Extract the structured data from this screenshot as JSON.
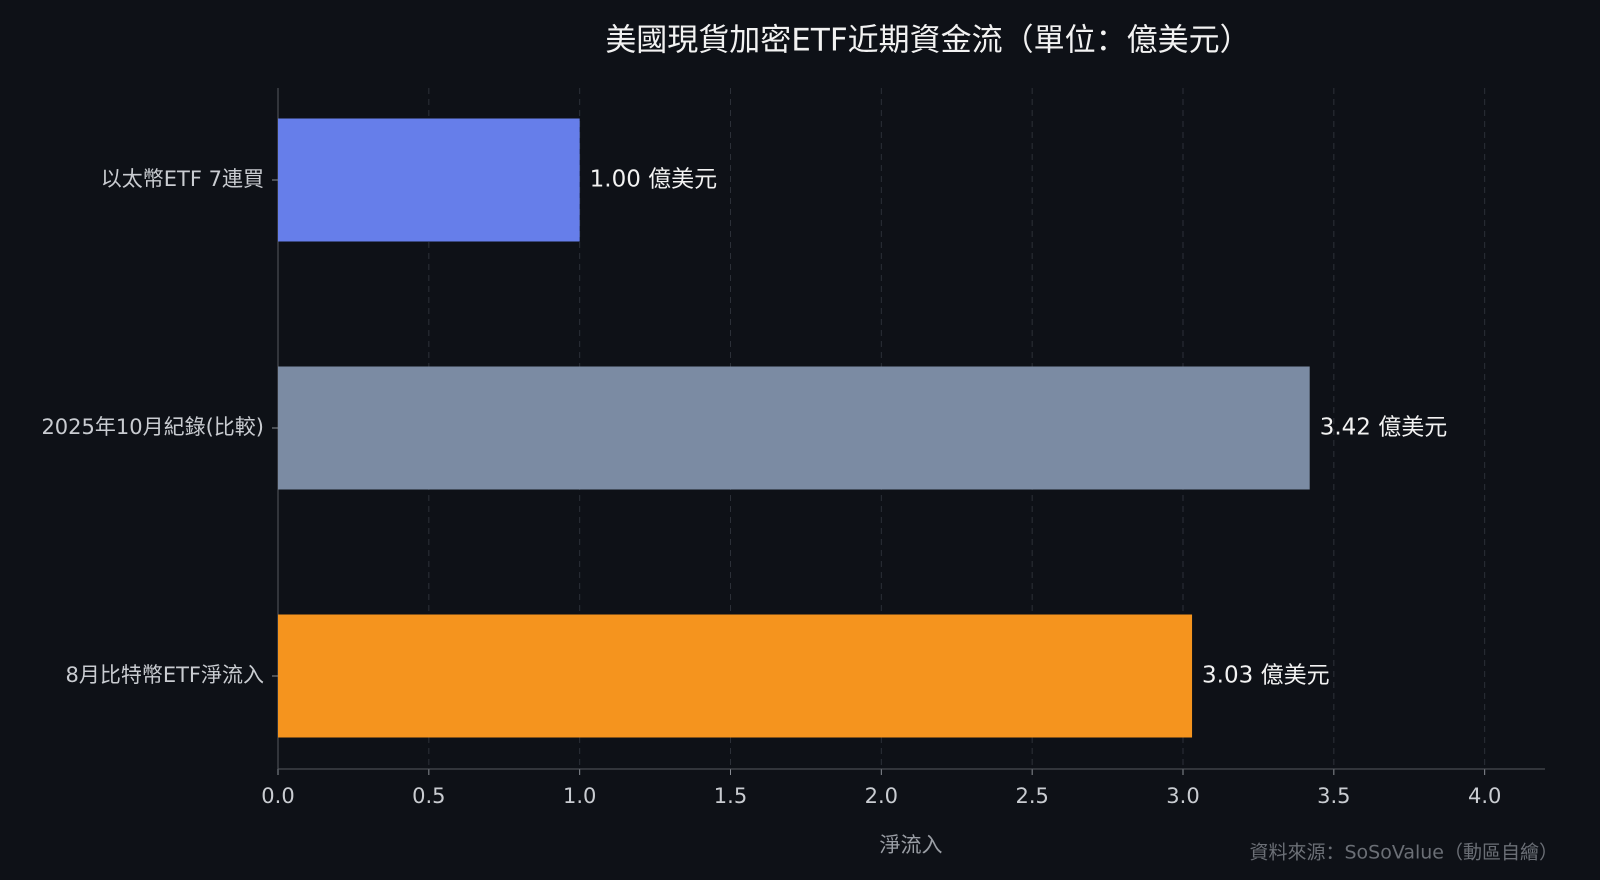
{
  "chart_data": {
    "type": "barh",
    "title": "美國現貨加密ETF近期資金流（單位：億美元）",
    "categories": [
      "以太幣ETF 7連買",
      "2025年10月紀錄(比較)",
      "8月比特幣ETF淨流入"
    ],
    "values": [
      1.0,
      3.42,
      3.03
    ],
    "value_labels": [
      "1.00 億美元",
      "3.42 億美元",
      "3.03 億美元"
    ],
    "colors": [
      "#667eea",
      "#7b8ba3",
      "#f5941e"
    ],
    "xlabel": "淨流入",
    "xlim": [
      0,
      4.2
    ],
    "xticks": [
      {
        "value": 0,
        "label": "0.0"
      },
      0.5,
      {
        "value": 1,
        "label": "1.0"
      },
      1.5,
      {
        "value": 2,
        "label": "2.0"
      },
      2.5,
      {
        "value": 3,
        "label": "3.0"
      },
      3.5,
      {
        "value": 4,
        "label": "4.0"
      }
    ],
    "grid": true,
    "source": "資料來源：SoSoValue（動區自繪）"
  }
}
